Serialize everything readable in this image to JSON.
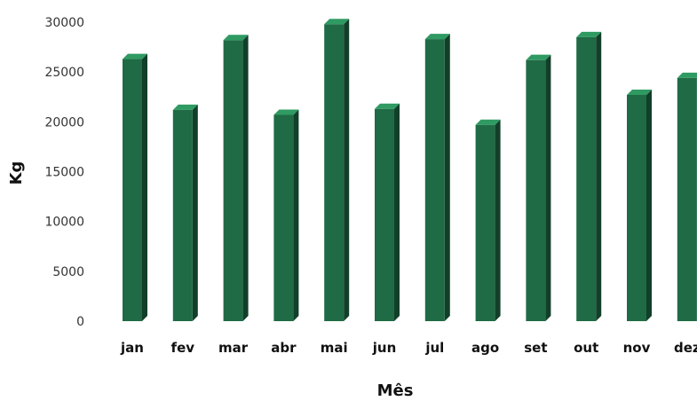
{
  "chart_data": {
    "type": "bar",
    "title": "",
    "xlabel": "Mês",
    "ylabel": "Kg",
    "categories": [
      "jan",
      "fev",
      "mar",
      "abr",
      "mai",
      "jun",
      "jul",
      "ago",
      "set",
      "out",
      "nov",
      "dez"
    ],
    "values": [
      26300,
      21200,
      28200,
      20700,
      29800,
      21300,
      28300,
      19700,
      26200,
      28500,
      22700,
      24400
    ],
    "ylim": [
      0,
      30000
    ],
    "yticks": [
      0,
      5000,
      10000,
      15000,
      20000,
      25000,
      30000
    ],
    "grid": false,
    "legend": "none",
    "bar_style": "3d-column",
    "colors": {
      "bar_front": "#1f6b45",
      "bar_side": "#123f29",
      "bar_top": "#2f9a62"
    }
  }
}
